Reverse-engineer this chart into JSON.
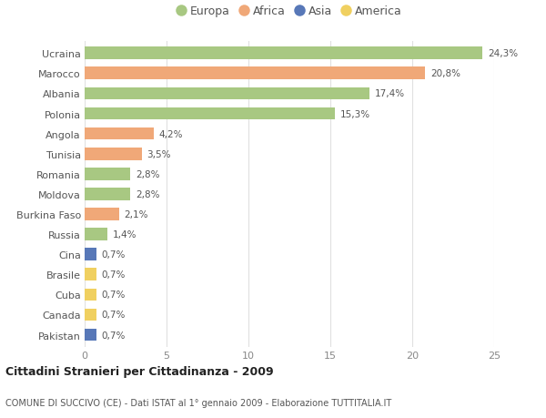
{
  "countries": [
    "Ucraina",
    "Marocco",
    "Albania",
    "Polonia",
    "Angola",
    "Tunisia",
    "Romania",
    "Moldova",
    "Burkina Faso",
    "Russia",
    "Cina",
    "Brasile",
    "Cuba",
    "Canada",
    "Pakistan"
  ],
  "values": [
    24.3,
    20.8,
    17.4,
    15.3,
    4.2,
    3.5,
    2.8,
    2.8,
    2.1,
    1.4,
    0.7,
    0.7,
    0.7,
    0.7,
    0.7
  ],
  "labels": [
    "24,3%",
    "20,8%",
    "17,4%",
    "15,3%",
    "4,2%",
    "3,5%",
    "2,8%",
    "2,8%",
    "2,1%",
    "1,4%",
    "0,7%",
    "0,7%",
    "0,7%",
    "0,7%",
    "0,7%"
  ],
  "continents": [
    "Europa",
    "Africa",
    "Europa",
    "Europa",
    "Africa",
    "Africa",
    "Europa",
    "Europa",
    "Africa",
    "Europa",
    "Asia",
    "America",
    "America",
    "America",
    "Asia"
  ],
  "colors": {
    "Europa": "#a8c882",
    "Africa": "#f0a878",
    "Asia": "#5878b8",
    "America": "#f0d060"
  },
  "title": "Cittadini Stranieri per Cittadinanza - 2009",
  "subtitle": "COMUNE DI SUCCIVO (CE) - Dati ISTAT al 1° gennaio 2009 - Elaborazione TUTTITALIA.IT",
  "xlim": [
    0,
    25
  ],
  "xticks": [
    0,
    5,
    10,
    15,
    20,
    25
  ],
  "background_color": "#ffffff",
  "grid_color": "#e0e0e0",
  "legend_order": [
    "Europa",
    "Africa",
    "Asia",
    "America"
  ]
}
